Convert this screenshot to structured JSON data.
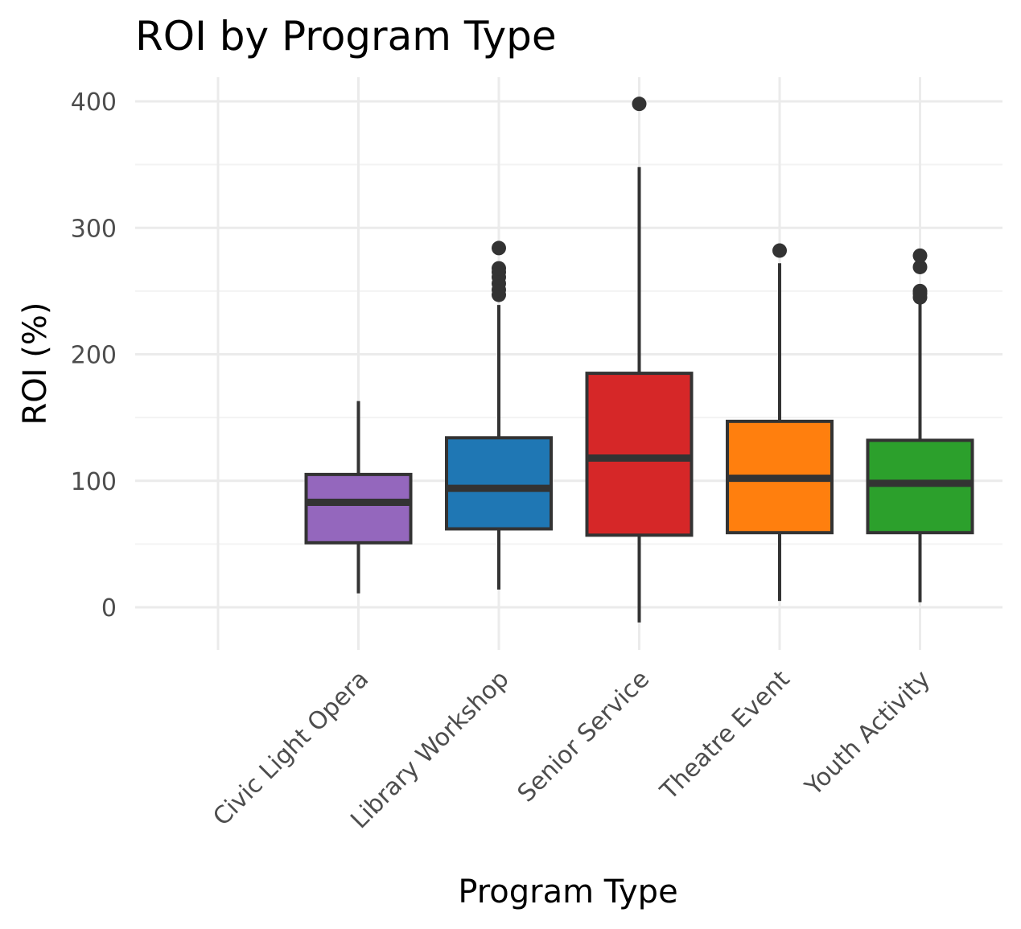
{
  "chart_data": {
    "type": "box",
    "title": "ROI by Program Type",
    "xlabel": "Program Type",
    "ylabel": "ROI (%)",
    "ylim": [
      -35,
      420
    ],
    "yticks": [
      0,
      100,
      200,
      300,
      400
    ],
    "grid": true,
    "legend": "none",
    "categories": [
      "",
      "Civic Light Opera",
      "Library Workshop",
      "Senior Service",
      "Theatre Event",
      "Youth Activity"
    ],
    "boxes": [
      {
        "category": "Civic Light Opera",
        "color": "#9467bd",
        "whisker_low": 11,
        "q1": 51,
        "median": 83,
        "q3": 105,
        "whisker_high": 163,
        "outliers": []
      },
      {
        "category": "Library Workshop",
        "color": "#1f77b4",
        "whisker_low": 14,
        "q1": 62,
        "median": 94,
        "q3": 134,
        "whisker_high": 239,
        "outliers": [
          247,
          251,
          256,
          261,
          265,
          268,
          284
        ]
      },
      {
        "category": "Senior Service",
        "color": "#d62728",
        "whisker_low": -12,
        "q1": 57,
        "median": 118,
        "q3": 185,
        "whisker_high": 348,
        "outliers": [
          398
        ]
      },
      {
        "category": "Theatre Event",
        "color": "#ff7f0e",
        "whisker_low": 5,
        "q1": 59,
        "median": 102,
        "q3": 147,
        "whisker_high": 272,
        "outliers": [
          282
        ]
      },
      {
        "category": "Youth Activity",
        "color": "#2ca02c",
        "whisker_low": 4,
        "q1": 59,
        "median": 98,
        "q3": 132,
        "whisker_high": 240,
        "outliers": [
          245,
          248,
          250,
          269,
          278
        ]
      }
    ]
  }
}
